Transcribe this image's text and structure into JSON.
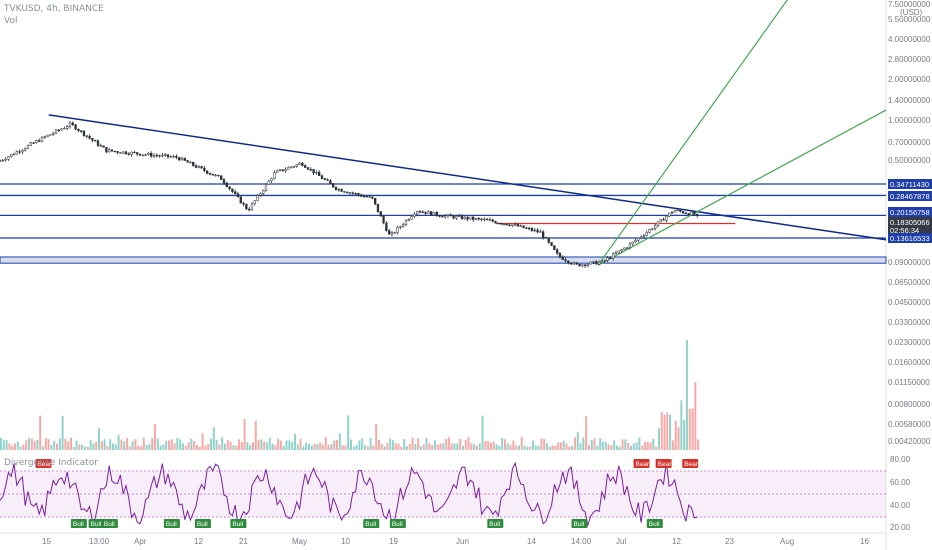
{
  "header": {
    "symbol": "TVKUSD, 4h, BINANCE",
    "vol_label": "Vol"
  },
  "indicator": {
    "title": "Divergence Indicator"
  },
  "price_axis": {
    "currency": "(USD)",
    "ticks": [
      "7.50000000",
      "5.50000000",
      "4.00000000",
      "2.80000000",
      "2.00000000",
      "1.40000000",
      "1.00000000",
      "0.70000000",
      "0.50000000",
      "0.09000000",
      "0.06500000",
      "0.04500000",
      "0.03300000",
      "0.02300000",
      "0.01600000",
      "0.01150000",
      "0.00800000",
      "0.00580000",
      "0.00420000"
    ],
    "level_tags": [
      {
        "text": "0.34711430",
        "color": "#1e3fa8"
      },
      {
        "text": "0.28467878",
        "color": "#1e3fa8"
      },
      {
        "text": "0.20156758",
        "color": "#1e3fa8"
      },
      {
        "text": "0.18305066",
        "color": "#363a45"
      },
      {
        "text": "02:56:34",
        "color": "#363a45"
      },
      {
        "text": "0.13616533",
        "color": "#1e3fa8"
      }
    ]
  },
  "time_axis": {
    "ticks": [
      "15",
      "13:00",
      "Apr",
      "12",
      "21",
      "May",
      "10",
      "19",
      "Jun",
      "14",
      "14:00",
      "Jul",
      "12",
      "23",
      "Aug",
      "16"
    ]
  },
  "rsi_axis": {
    "ticks": [
      "80.00",
      "60.00",
      "40.00",
      "20.00"
    ]
  },
  "chart_data": {
    "type": "line",
    "price_series": {
      "name": "TVKUSD",
      "points": [
        [
          0,
          0.52
        ],
        [
          0.05,
          0.78
        ],
        [
          0.08,
          0.98
        ],
        [
          0.12,
          0.62
        ],
        [
          0.2,
          0.55
        ],
        [
          0.25,
          0.38
        ],
        [
          0.28,
          0.22
        ],
        [
          0.31,
          0.42
        ],
        [
          0.34,
          0.5
        ],
        [
          0.38,
          0.32
        ],
        [
          0.42,
          0.27
        ],
        [
          0.44,
          0.14
        ],
        [
          0.47,
          0.22
        ],
        [
          0.5,
          0.2
        ],
        [
          0.55,
          0.185
        ],
        [
          0.58,
          0.17
        ],
        [
          0.61,
          0.15
        ],
        [
          0.63,
          0.1
        ],
        [
          0.65,
          0.085
        ],
        [
          0.68,
          0.09
        ],
        [
          0.71,
          0.12
        ],
        [
          0.74,
          0.17
        ],
        [
          0.76,
          0.22
        ],
        [
          0.785,
          0.205
        ],
        [
          0.79,
          0.18
        ]
      ]
    },
    "horizontal_levels": [
      0.3471143,
      0.28467878,
      0.20156758,
      0.13616533
    ],
    "support_zone": [
      0.088,
      0.098
    ],
    "current_price": 0.18305066,
    "rsi": {
      "upper": 70,
      "lower": 30,
      "mid": 50,
      "signals": [
        {
          "label": "Bear",
          "type": "bear"
        },
        {
          "label": "Bull",
          "type": "bull"
        },
        {
          "label": "Bull",
          "type": "bull"
        },
        {
          "label": "Bull",
          "type": "bull"
        },
        {
          "label": "Bull",
          "type": "bull"
        },
        {
          "label": "Bull",
          "type": "bull"
        },
        {
          "label": "Bull",
          "type": "bull"
        },
        {
          "label": "Bull",
          "type": "bull"
        },
        {
          "label": "Bull",
          "type": "bull"
        },
        {
          "label": "Bull",
          "type": "bull"
        },
        {
          "label": "Bull",
          "type": "bull"
        },
        {
          "label": "Bear",
          "type": "bear"
        },
        {
          "label": "Bull",
          "type": "bull"
        },
        {
          "label": "Bear",
          "type": "bear"
        },
        {
          "label": "Bear",
          "type": "bear"
        }
      ]
    },
    "colors": {
      "level": "#1e3fa8",
      "trend": "#0d2a8a",
      "green": "#3fa94b",
      "red": "#d8322c",
      "rsi": "#7b1fa2",
      "up": "#26a69a",
      "down": "#ef5350"
    }
  }
}
